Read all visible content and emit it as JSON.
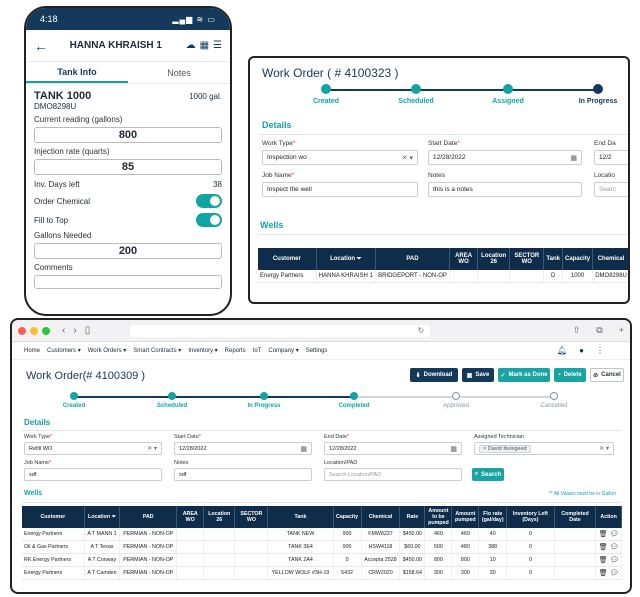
{
  "phone": {
    "time": "4:18",
    "status_icons": "▂▄▆ ≋ ▭",
    "header_title": "HANNA KHRAISH 1",
    "tabs": [
      "Tank Info",
      "Notes"
    ],
    "tank_name": "TANK 1000",
    "tank_capacity": "1000 gal.",
    "tank_code": "DMO8298U",
    "current_reading_label": "Current reading (gallons)",
    "current_reading_value": "800",
    "injection_rate_label": "Injection rate (quarts)",
    "injection_rate_value": "85",
    "inv_days_label": "Inv. Days left",
    "inv_days_value": "38",
    "order_chemical_label": "Order Chemical",
    "order_chemical_on": true,
    "fill_to_top_label": "Fill to Top",
    "fill_to_top_on": true,
    "gallons_needed_label": "Gallons Needed",
    "gallons_needed_value": "200",
    "comments_label": "Comments"
  },
  "wo1": {
    "title": "Work Order ( # 4100323 )",
    "steps": [
      "Created",
      "Scheduled",
      "Assigned",
      "In Progress"
    ],
    "details_label": "Details",
    "work_type_label": "Work Type",
    "work_type_value": "Inspection wo",
    "start_date_label": "Start Date",
    "start_date_value": "12/28/2022",
    "end_date_label": "End Da",
    "end_date_value": "12/2",
    "job_name_label": "Job Name",
    "job_name_value": "Inspect the well",
    "notes_label": "Notes",
    "notes_value": "this is a notes",
    "location_label": "Locatio",
    "location_placeholder": "Searc",
    "wells_label": "Wells",
    "columns": [
      "Customer",
      "Location",
      "PAD",
      "AREA WO",
      "Location 26",
      "SECTOR WO",
      "Tank",
      "Capacity",
      "Chemical"
    ],
    "rows": [
      [
        "Energy Partners",
        "HANNA KHRAISH 1",
        "BRIDGEPORT - NON-OP",
        "",
        "",
        "",
        "D",
        "1000",
        "DMO8298U"
      ]
    ]
  },
  "browser": {
    "menu": [
      "Home",
      "Customers ▾",
      "Work Orders ▾",
      "Smart Contracts ▾",
      "Inventory ▾",
      "Reports",
      "IoT",
      "Company ▾",
      "Settings"
    ],
    "title": "Work Order(# 4100309 )",
    "buttons": {
      "download": "Download",
      "save": "Save",
      "mark_done": "Mark as Done",
      "delete": "Delete",
      "cancel": "Cancel"
    },
    "steps": [
      "Created",
      "Scheduled",
      "In Progress",
      "Completed",
      "Approved",
      "Cancelled"
    ],
    "details_label": "Details",
    "work_type_label": "Work Type",
    "work_type_value": "Refill WO",
    "start_date_label": "Start Date",
    "start_date_value": "12/28/2022",
    "end_date_label": "End Date",
    "end_date_value": "12/28/2022",
    "technician_label": "Assigned Technician",
    "technician_value": "David Ituregeed",
    "job_name_label": "Job Name",
    "job_name_value": "sdf",
    "notes_label": "Notes",
    "notes_value": "sdf",
    "location_label": "Location/PAD",
    "location_placeholder": "Search Location/PAD",
    "search_button": "Search",
    "wells_label": "Wells",
    "gallon_note": "** All Values must be in Gallon",
    "columns": [
      "Customer",
      "Location",
      "PAD",
      "AREA WO",
      "Location 26",
      "SECTOR WO",
      "Tank",
      "Capacity",
      "Chemical",
      "Rate",
      "Amount to be pumped",
      "Amount pumped",
      "Flo rate (gal/day)",
      "Inventory Left (Days)",
      "Completed Date",
      "Action"
    ],
    "rows": [
      [
        "Energy Partners",
        "A T MANN 1",
        "PERMIAN - NON-OP",
        "",
        "",
        "",
        "TANK NEW",
        "900",
        "FMW8237",
        "$450.00",
        "460",
        "460",
        "40",
        "0",
        "",
        ""
      ],
      [
        "Oil & Gas Partners",
        "A T  Texas",
        "PERMIAN - NON-OP",
        "",
        "",
        "",
        "TANK 3E4",
        "900",
        "HSW4118",
        "$60.00",
        "500",
        "480",
        "388",
        "0",
        "",
        ""
      ],
      [
        "RK Energy Partners",
        "A T Conway",
        "PERMIAN - NON-OP",
        "",
        "",
        "",
        "TANK 2A4",
        "0",
        "Accepta 2528",
        "$450.00",
        "800",
        "800",
        "10",
        "0",
        "",
        ""
      ],
      [
        "Energy Partners",
        "A T Camden",
        "PERMIAN - NON-OP",
        "",
        "",
        "",
        "YELLOW WOLF #3H-19",
        "5432",
        "CRW2020",
        "$158.64",
        "300",
        "300",
        "30",
        "0",
        "",
        ""
      ]
    ]
  },
  "colors": {
    "navy": "#14395a",
    "teal": "#14a3a3",
    "red": "#d33"
  }
}
